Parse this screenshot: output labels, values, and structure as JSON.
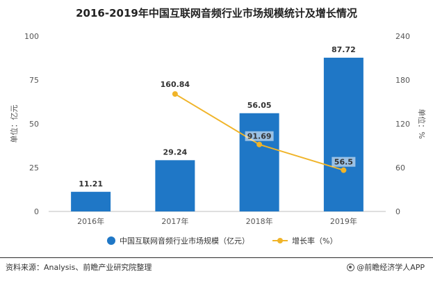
{
  "chart_data": {
    "type": "bar",
    "title": "2016-2019年中国互联网音频行业市场规模统计及增长情况",
    "categories": [
      "2016年",
      "2017年",
      "2018年",
      "2019年"
    ],
    "series": [
      {
        "name": "中国互联网音频行业市场规模（亿元）",
        "type": "bar",
        "axis": "left",
        "color": "#1f77c6",
        "values": [
          11.21,
          29.24,
          56.05,
          87.72
        ],
        "labels": [
          "11.21",
          "29.24",
          "56.05",
          "87.72"
        ]
      },
      {
        "name": "增长率（%）",
        "type": "line",
        "axis": "right",
        "color": "#f0b429",
        "values": [
          null,
          160.84,
          91.69,
          56.5
        ],
        "labels": [
          "",
          "160.84",
          "91.69",
          "56.5"
        ]
      }
    ],
    "y_left": {
      "label": "单位：亿元",
      "ylim": [
        0,
        100
      ],
      "ticks": [
        "0",
        "25",
        "50",
        "75",
        "100"
      ]
    },
    "y_right": {
      "label": "单位：%",
      "ylim": [
        0,
        240
      ],
      "ticks": [
        "0",
        "60",
        "120",
        "180",
        "240"
      ]
    },
    "grid": false,
    "legend_position": "bottom"
  },
  "footer": {
    "source": "资料来源：Analysis、前瞻产业研究院整理",
    "credit": "@前瞻经济学人APP"
  }
}
